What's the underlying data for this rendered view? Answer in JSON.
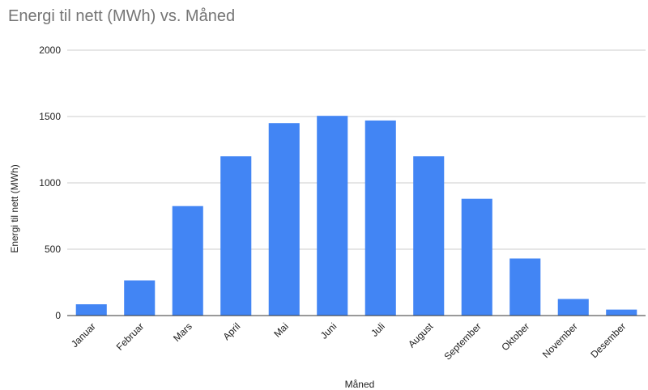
{
  "chart_data": {
    "type": "bar",
    "title": "Energi til nett (MWh) vs. Måned",
    "xlabel": "Måned",
    "ylabel": "Energi til nett (MWh)",
    "ylim": [
      0,
      2000
    ],
    "yticks": [
      "0",
      "500",
      "1000",
      "1500",
      "2000"
    ],
    "grid": true,
    "categories": [
      "Januar",
      "Februar",
      "Mars",
      "April",
      "Mai",
      "Juni",
      "Juli",
      "August",
      "September",
      "Oktober",
      "November",
      "Desember"
    ],
    "values": [
      85,
      265,
      825,
      1200,
      1450,
      1505,
      1470,
      1200,
      880,
      430,
      125,
      45
    ],
    "colors": {
      "bar": "#4285f4",
      "grid": "#cccccc",
      "baseline": "#333333",
      "title": "#757575"
    }
  }
}
